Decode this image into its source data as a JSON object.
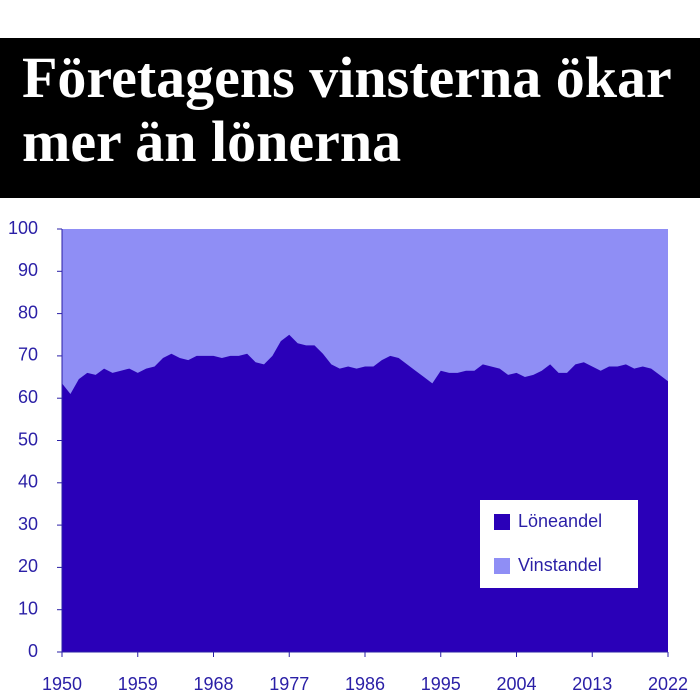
{
  "chart_data": {
    "type": "stacked_area",
    "title": "Företagens vinsterna ökar mer än lönerna",
    "x": [
      1950,
      1951,
      1952,
      1953,
      1954,
      1955,
      1956,
      1957,
      1958,
      1959,
      1960,
      1961,
      1962,
      1963,
      1964,
      1965,
      1966,
      1967,
      1968,
      1969,
      1970,
      1971,
      1972,
      1973,
      1974,
      1975,
      1976,
      1977,
      1978,
      1979,
      1980,
      1981,
      1982,
      1983,
      1984,
      1985,
      1986,
      1987,
      1988,
      1989,
      1990,
      1991,
      1992,
      1993,
      1994,
      1995,
      1996,
      1997,
      1998,
      1999,
      2000,
      2001,
      2002,
      2003,
      2004,
      2005,
      2006,
      2007,
      2008,
      2009,
      2010,
      2011,
      2012,
      2013,
      2014,
      2015,
      2016,
      2017,
      2018,
      2019,
      2020,
      2021,
      2022
    ],
    "series": [
      {
        "name": "Löneandel",
        "color": "#2a00b8",
        "values": [
          63.5,
          61,
          64.5,
          66,
          65.5,
          67,
          66,
          66.5,
          67,
          66,
          67,
          67.5,
          69.5,
          70.5,
          69.5,
          69,
          70,
          70,
          70,
          69.5,
          70,
          70,
          70.5,
          68.5,
          68,
          70,
          73.5,
          75,
          73,
          72.5,
          72.5,
          70.5,
          68,
          67,
          67.5,
          67,
          67.5,
          67.5,
          69,
          70,
          69.5,
          68,
          66.5,
          65,
          63.5,
          66.5,
          66,
          66,
          66.5,
          66.5,
          68,
          67.5,
          67,
          65.5,
          66,
          65,
          65.5,
          66.5,
          68,
          66,
          66,
          68,
          68.5,
          67.5,
          66.5,
          67.5,
          67.5,
          68,
          67,
          67.5,
          67,
          65.5,
          64
        ]
      },
      {
        "name": "Vinstandel",
        "color": "#8f8ef5",
        "values": [
          36.5,
          39,
          35.5,
          34,
          34.5,
          33,
          34,
          33.5,
          33,
          34,
          33,
          32.5,
          30.5,
          29.5,
          30.5,
          31,
          30,
          30,
          30,
          30.5,
          30,
          30,
          29.5,
          31.5,
          32,
          30,
          26.5,
          25,
          27,
          27.5,
          27.5,
          29.5,
          32,
          33,
          32.5,
          33,
          32.5,
          32.5,
          31,
          30,
          30.5,
          32,
          33.5,
          35,
          36.5,
          33.5,
          34,
          34,
          33.5,
          33.5,
          32,
          32.5,
          33,
          34.5,
          34,
          35,
          34.5,
          33.5,
          32,
          34,
          34,
          32,
          31.5,
          32.5,
          33.5,
          32.5,
          32.5,
          32,
          33,
          32.5,
          33,
          34.5,
          36
        ]
      }
    ],
    "xlim": [
      1950,
      2022
    ],
    "xticks": [
      1950,
      1959,
      1968,
      1977,
      1986,
      1995,
      2004,
      2013,
      2022
    ],
    "ylim": [
      0,
      100
    ],
    "yticks": [
      0,
      10,
      20,
      30,
      40,
      50,
      60,
      70,
      80,
      90,
      100
    ],
    "legend": "lower right"
  }
}
